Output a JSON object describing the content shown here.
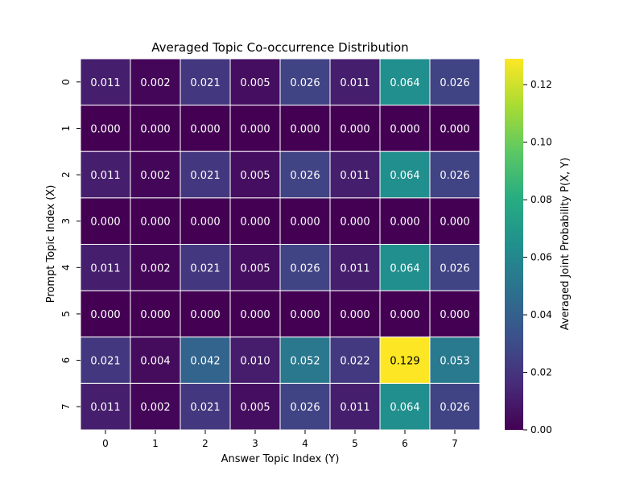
{
  "chart_data": {
    "type": "heatmap",
    "title": "Averaged Topic Co-occurrence Distribution",
    "xlabel": "Answer Topic Index (Y)",
    "ylabel": "Prompt Topic Index (X)",
    "x_categories": [
      "0",
      "1",
      "2",
      "3",
      "4",
      "5",
      "6",
      "7"
    ],
    "y_categories": [
      "0",
      "1",
      "2",
      "3",
      "4",
      "5",
      "6",
      "7"
    ],
    "values": [
      [
        0.011,
        0.002,
        0.021,
        0.005,
        0.026,
        0.011,
        0.064,
        0.026
      ],
      [
        0.0,
        0.0,
        0.0,
        0.0,
        0.0,
        0.0,
        0.0,
        0.0
      ],
      [
        0.011,
        0.002,
        0.021,
        0.005,
        0.026,
        0.011,
        0.064,
        0.026
      ],
      [
        0.0,
        0.0,
        0.0,
        0.0,
        0.0,
        0.0,
        0.0,
        0.0
      ],
      [
        0.011,
        0.002,
        0.021,
        0.005,
        0.026,
        0.011,
        0.064,
        0.026
      ],
      [
        0.0,
        0.0,
        0.0,
        0.0,
        0.0,
        0.0,
        0.0,
        0.0
      ],
      [
        0.021,
        0.004,
        0.042,
        0.01,
        0.052,
        0.022,
        0.129,
        0.053
      ],
      [
        0.011,
        0.002,
        0.021,
        0.005,
        0.026,
        0.011,
        0.064,
        0.026
      ]
    ],
    "value_format": "0.000",
    "colormap": "viridis",
    "vmin": 0,
    "vmax": 0.129,
    "colorbar": {
      "label": "Averaged Joint Probability P(X, Y)",
      "ticks": [
        0.0,
        0.02,
        0.04,
        0.06,
        0.08,
        0.1,
        0.12
      ],
      "tick_labels": [
        "0.00",
        "0.02",
        "0.04",
        "0.06",
        "0.08",
        "0.10",
        "0.12"
      ]
    },
    "cell_border_color": "#ffffff",
    "annotation_color": "#ffffff"
  }
}
